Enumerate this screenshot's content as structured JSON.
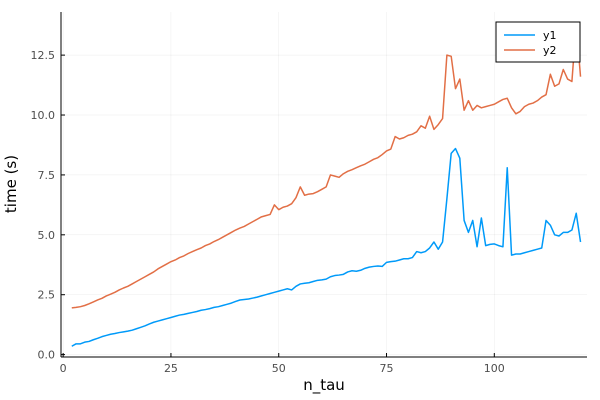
{
  "chart_data": {
    "type": "line",
    "title": "",
    "xlabel": "n_tau",
    "ylabel": "time (s)",
    "xlim": [
      -0.5,
      121.5
    ],
    "ylim": [
      -0.1,
      14.3
    ],
    "x_ticks": [
      0,
      25,
      50,
      75,
      100
    ],
    "y_ticks": [
      0.0,
      2.5,
      5.0,
      7.5,
      10.0,
      12.5
    ],
    "x_tick_labels": [
      "0",
      "25",
      "50",
      "75",
      "100"
    ],
    "y_tick_labels": [
      "0.0",
      "2.5",
      "5.0",
      "7.5",
      "10.0",
      "12.5"
    ],
    "grid": true,
    "legend_position": "top-right",
    "x": [
      2,
      3,
      4,
      5,
      6,
      7,
      8,
      9,
      10,
      11,
      12,
      13,
      14,
      15,
      16,
      17,
      18,
      19,
      20,
      21,
      22,
      23,
      24,
      25,
      26,
      27,
      28,
      29,
      30,
      31,
      32,
      33,
      34,
      35,
      36,
      37,
      38,
      39,
      40,
      41,
      42,
      43,
      44,
      45,
      46,
      47,
      48,
      49,
      50,
      51,
      52,
      53,
      54,
      55,
      56,
      57,
      58,
      59,
      60,
      61,
      62,
      63,
      64,
      65,
      66,
      67,
      68,
      69,
      70,
      71,
      72,
      73,
      74,
      75,
      76,
      77,
      78,
      79,
      80,
      81,
      82,
      83,
      84,
      85,
      86,
      87,
      88,
      89,
      90,
      91,
      92,
      93,
      94,
      95,
      96,
      97,
      98,
      99,
      100,
      101,
      102,
      103,
      104,
      105,
      106,
      107,
      108,
      109,
      110,
      111,
      112,
      113,
      114,
      115,
      116,
      117,
      118,
      119,
      120
    ],
    "series": [
      {
        "name": "y1",
        "color": "#009af9",
        "values": [
          0.35,
          0.45,
          0.45,
          0.52,
          0.55,
          0.62,
          0.68,
          0.75,
          0.8,
          0.85,
          0.88,
          0.92,
          0.95,
          0.98,
          1.02,
          1.08,
          1.14,
          1.2,
          1.28,
          1.35,
          1.4,
          1.45,
          1.5,
          1.55,
          1.6,
          1.65,
          1.68,
          1.72,
          1.76,
          1.8,
          1.85,
          1.88,
          1.92,
          1.97,
          2.0,
          2.05,
          2.1,
          2.15,
          2.22,
          2.28,
          2.3,
          2.32,
          2.36,
          2.4,
          2.45,
          2.5,
          2.55,
          2.6,
          2.65,
          2.7,
          2.75,
          2.7,
          2.85,
          2.95,
          2.98,
          3.0,
          3.05,
          3.1,
          3.12,
          3.15,
          3.25,
          3.3,
          3.32,
          3.35,
          3.45,
          3.5,
          3.48,
          3.52,
          3.6,
          3.65,
          3.68,
          3.7,
          3.68,
          3.85,
          3.88,
          3.9,
          3.95,
          4.0,
          4.0,
          4.05,
          4.3,
          4.25,
          4.3,
          4.45,
          4.7,
          4.4,
          4.7,
          6.5,
          8.4,
          8.6,
          8.2,
          5.6,
          5.1,
          5.6,
          4.5,
          5.7,
          4.55,
          4.6,
          4.62,
          4.55,
          4.5,
          7.8,
          4.15,
          4.2,
          4.2,
          4.25,
          4.3,
          4.35,
          4.4,
          4.45,
          5.6,
          5.4,
          5.0,
          4.95,
          5.1,
          5.1,
          5.2,
          5.9,
          4.7
        ]
      },
      {
        "name": "y2",
        "color": "#e26f46",
        "values": [
          1.95,
          1.97,
          2.0,
          2.05,
          2.12,
          2.2,
          2.28,
          2.35,
          2.45,
          2.52,
          2.6,
          2.7,
          2.78,
          2.85,
          2.95,
          3.05,
          3.15,
          3.25,
          3.35,
          3.45,
          3.58,
          3.68,
          3.78,
          3.88,
          3.95,
          4.05,
          4.12,
          4.22,
          4.3,
          4.38,
          4.45,
          4.55,
          4.62,
          4.72,
          4.8,
          4.9,
          5.0,
          5.1,
          5.2,
          5.28,
          5.35,
          5.45,
          5.55,
          5.65,
          5.75,
          5.8,
          5.85,
          6.25,
          6.05,
          6.15,
          6.2,
          6.3,
          6.55,
          7.0,
          6.65,
          6.7,
          6.72,
          6.8,
          6.9,
          7.0,
          7.5,
          7.45,
          7.4,
          7.55,
          7.65,
          7.72,
          7.8,
          7.88,
          7.95,
          8.05,
          8.15,
          8.22,
          8.35,
          8.5,
          8.58,
          9.1,
          9.0,
          9.05,
          9.15,
          9.2,
          9.3,
          9.55,
          9.45,
          9.95,
          9.4,
          9.6,
          9.85,
          12.5,
          12.45,
          11.1,
          11.5,
          10.2,
          10.6,
          10.2,
          10.4,
          10.3,
          10.35,
          10.4,
          10.45,
          10.55,
          10.65,
          10.7,
          10.3,
          10.05,
          10.15,
          10.35,
          10.45,
          10.5,
          10.6,
          10.75,
          10.85,
          11.7,
          11.2,
          11.3,
          11.9,
          11.5,
          11.4,
          13.8,
          11.6
        ]
      }
    ]
  }
}
